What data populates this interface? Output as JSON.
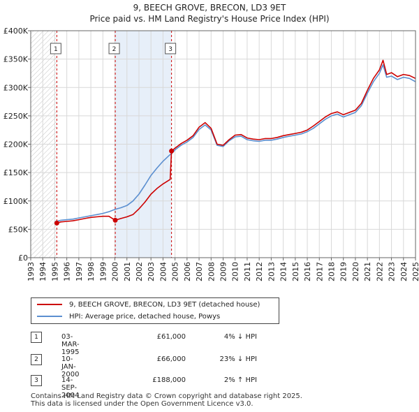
{
  "header": {
    "title": "9, BEECH GROVE, BRECON, LD3 9ET",
    "subtitle": "Price paid vs. HM Land Registry's House Price Index (HPI)"
  },
  "legend": {
    "items": [
      {
        "label": "9, BEECH GROVE, BRECON, LD3 9ET (detached house)",
        "color": "#cc0000"
      },
      {
        "label": "HPI: Average price, detached house, Powys",
        "color": "#5b8fd0"
      }
    ]
  },
  "transactions": [
    {
      "num": "1",
      "date": "03-MAR-1995",
      "price": "£61,000",
      "hpi": "4% ↓ HPI"
    },
    {
      "num": "2",
      "date": "10-JAN-2000",
      "price": "£66,000",
      "hpi": "23% ↓ HPI"
    },
    {
      "num": "3",
      "date": "14-SEP-2004",
      "price": "£188,000",
      "hpi": "2% ↑ HPI"
    }
  ],
  "footer": {
    "line1": "Contains HM Land Registry data © Crown copyright and database right 2025.",
    "line2": "This data is licensed under the Open Government Licence v3.0."
  },
  "chart_data": {
    "type": "line",
    "title": "9, BEECH GROVE, BRECON, LD3 9ET",
    "subtitle": "Price paid vs. HM Land Registry's House Price Index (HPI)",
    "xlabel": "",
    "ylabel": "",
    "xlim": [
      1993,
      2025
    ],
    "ylim": [
      0,
      400000
    ],
    "x_ticks": [
      "1993",
      "1994",
      "1995",
      "1996",
      "1997",
      "1998",
      "1999",
      "2000",
      "2001",
      "2002",
      "2003",
      "2004",
      "2005",
      "2006",
      "2007",
      "2008",
      "2009",
      "2010",
      "2011",
      "2012",
      "2013",
      "2014",
      "2015",
      "2016",
      "2017",
      "2018",
      "2019",
      "2020",
      "2021",
      "2022",
      "2023",
      "2024",
      "2025"
    ],
    "y_ticks": [
      {
        "value": 0,
        "label": "£0"
      },
      {
        "value": 50000,
        "label": "£50K"
      },
      {
        "value": 100000,
        "label": "£100K"
      },
      {
        "value": 150000,
        "label": "£150K"
      },
      {
        "value": 200000,
        "label": "£200K"
      },
      {
        "value": 250000,
        "label": "£250K"
      },
      {
        "value": 300000,
        "label": "£300K"
      },
      {
        "value": 350000,
        "label": "£350K"
      },
      {
        "value": 400000,
        "label": "£400K"
      }
    ],
    "grid": true,
    "hatched_region": [
      1993,
      1995.17
    ],
    "shaded_region": [
      2000.03,
      2004.71
    ],
    "sales": [
      {
        "label": "1",
        "x": 1995.17,
        "y": 61000
      },
      {
        "label": "2",
        "x": 2000.03,
        "y": 66000
      },
      {
        "label": "3",
        "x": 2004.71,
        "y": 188000
      }
    ],
    "series": [
      {
        "name": "HPI: Average price, detached house, Powys",
        "color": "#5b8fd0",
        "x": [
          1995.0,
          1995.5,
          1996,
          1996.5,
          1997,
          1997.5,
          1998,
          1998.5,
          1999,
          1999.5,
          2000,
          2000.5,
          2001,
          2001.5,
          2002,
          2002.5,
          2003,
          2003.5,
          2004,
          2004.5,
          2004.75,
          2005,
          2005.5,
          2006,
          2006.5,
          2007,
          2007.5,
          2008,
          2008.5,
          2009,
          2009.5,
          2010,
          2010.5,
          2011,
          2011.5,
          2012,
          2012.5,
          2013,
          2013.5,
          2014,
          2014.5,
          2015,
          2015.5,
          2016,
          2016.5,
          2017,
          2017.5,
          2018,
          2018.5,
          2019,
          2019.5,
          2020,
          2020.5,
          2021,
          2021.5,
          2022,
          2022.3,
          2022.6,
          2023,
          2023.5,
          2024,
          2024.5,
          2025
        ],
        "y": [
          63000,
          66000,
          67000,
          68000,
          70000,
          72000,
          74000,
          76000,
          78000,
          81000,
          85000,
          88000,
          92000,
          100000,
          112000,
          128000,
          145000,
          158000,
          170000,
          180000,
          184000,
          190000,
          198000,
          204000,
          212000,
          226000,
          234000,
          225000,
          198000,
          196000,
          206000,
          213000,
          214000,
          208000,
          206000,
          205000,
          207000,
          207000,
          209000,
          212000,
          214000,
          216000,
          218000,
          222000,
          228000,
          236000,
          244000,
          250000,
          253000,
          248000,
          252000,
          256000,
          268000,
          290000,
          310000,
          325000,
          340000,
          318000,
          320000,
          314000,
          318000,
          316000,
          310000
        ]
      },
      {
        "name": "9, BEECH GROVE, BRECON, LD3 9ET (detached house)",
        "color": "#cc0000",
        "x": [
          1995.17,
          1995.5,
          1996,
          1996.5,
          1997,
          1997.5,
          1998,
          1998.5,
          1999,
          1999.5,
          2000.03,
          2000.5,
          2001,
          2001.5,
          2002,
          2002.5,
          2003,
          2003.5,
          2004,
          2004.6,
          2004.71,
          2005,
          2005.5,
          2006,
          2006.5,
          2007,
          2007.5,
          2008,
          2008.5,
          2009,
          2009.5,
          2010,
          2010.5,
          2011,
          2011.5,
          2012,
          2012.5,
          2013,
          2013.5,
          2014,
          2014.5,
          2015,
          2015.5,
          2016,
          2016.5,
          2017,
          2017.5,
          2018,
          2018.5,
          2019,
          2019.5,
          2020,
          2020.5,
          2021,
          2021.5,
          2022,
          2022.3,
          2022.6,
          2023,
          2023.5,
          2024,
          2024.5,
          2025
        ],
        "y": [
          61000,
          63000,
          64000,
          65000,
          67000,
          69000,
          71000,
          72000,
          73000,
          73000,
          66000,
          69000,
          72000,
          76000,
          86000,
          98000,
          112000,
          122000,
          130000,
          138000,
          188000,
          193000,
          201000,
          207000,
          215000,
          230000,
          238000,
          228000,
          200000,
          198000,
          208000,
          216000,
          217000,
          211000,
          209000,
          208000,
          210000,
          210000,
          212000,
          215000,
          217000,
          219000,
          221000,
          225000,
          232000,
          240000,
          248000,
          254000,
          257000,
          252000,
          256000,
          260000,
          272000,
          295000,
          316000,
          331000,
          348000,
          323000,
          326000,
          319000,
          323000,
          321000,
          316000
        ]
      }
    ]
  }
}
